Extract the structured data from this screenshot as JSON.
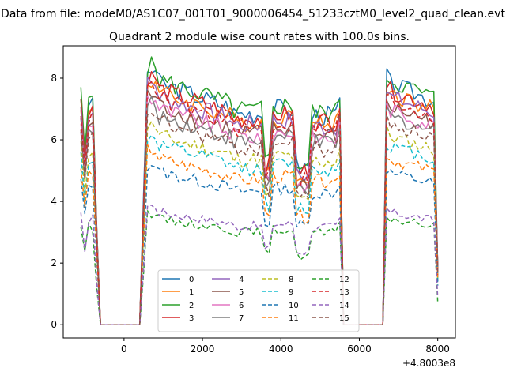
{
  "chart_data": {
    "type": "line",
    "suptitle": "Data from file: modeM0/AS1C07_001T01_9000006454_51233cztM0_level2_quad_clean.evt",
    "title": "Quadrant 2 module wise count rates with 100.0s bins.",
    "xlabel": "",
    "ylabel": "",
    "x_offset_label": "+4.8003e8",
    "xlim": [
      -1550,
      8450
    ],
    "ylim": [
      -0.43,
      9.05
    ],
    "x_ticks": [
      0,
      2000,
      4000,
      6000,
      8000
    ],
    "x_tick_labels": [
      "0",
      "2000",
      "4000",
      "6000",
      "8000"
    ],
    "y_ticks": [
      0,
      2,
      4,
      6,
      8
    ],
    "y_tick_labels": [
      "0",
      "2",
      "4",
      "6",
      "8"
    ],
    "grid": false,
    "legend": {
      "location": "bottom-center",
      "columns": 4
    },
    "segments_x": [
      [
        -1100,
        -1000,
        -900,
        -800,
        -700,
        -600
      ],
      [
        -600,
        400
      ],
      [
        400,
        500,
        600,
        700,
        800,
        900,
        1000,
        1100,
        1200,
        1300,
        1400,
        1500,
        1600,
        1700,
        1800,
        1900,
        2000,
        2100,
        2200,
        2300,
        2400,
        2500,
        2600,
        2700,
        2800,
        2900,
        3000,
        3100,
        3200,
        3300,
        3400,
        3500,
        3600,
        3700,
        3800,
        3900,
        4000,
        4100,
        4200,
        4300,
        4400,
        4500,
        4600,
        4700,
        4800,
        4900,
        5000,
        5100,
        5200,
        5300,
        5400,
        5500,
        5600
      ],
      [
        5600,
        6600
      ],
      [
        6600,
        6700,
        6800,
        6900,
        7000,
        7100,
        7200,
        7300,
        7400,
        7500,
        7600,
        7700,
        7800,
        7900,
        8000
      ]
    ],
    "series_levels": [
      7.3,
      7.0,
      7.4,
      7.1,
      6.9,
      6.6,
      6.5,
      6.3,
      5.7,
      5.4,
      4.6,
      5.0,
      3.2,
      6.8,
      3.4,
      6.1
    ],
    "series": [
      {
        "name": "0",
        "color": "#1f77b4",
        "dash": "solid",
        "level": 7.3
      },
      {
        "name": "1",
        "color": "#ff7f0e",
        "dash": "solid",
        "level": 7.0
      },
      {
        "name": "2",
        "color": "#2ca02c",
        "dash": "solid",
        "level": 7.4
      },
      {
        "name": "3",
        "color": "#d62728",
        "dash": "solid",
        "level": 7.1
      },
      {
        "name": "4",
        "color": "#9467bd",
        "dash": "solid",
        "level": 6.9
      },
      {
        "name": "5",
        "color": "#8c564b",
        "dash": "solid",
        "level": 6.6
      },
      {
        "name": "6",
        "color": "#e377c2",
        "dash": "solid",
        "level": 6.5
      },
      {
        "name": "7",
        "color": "#7f7f7f",
        "dash": "solid",
        "level": 6.3
      },
      {
        "name": "8",
        "color": "#bcbd22",
        "dash": "dashed",
        "level": 5.7
      },
      {
        "name": "9",
        "color": "#17becf",
        "dash": "dashed",
        "level": 5.4
      },
      {
        "name": "10",
        "color": "#1f77b4",
        "dash": "dashed",
        "level": 4.6
      },
      {
        "name": "11",
        "color": "#ff7f0e",
        "dash": "dashed",
        "level": 5.0
      },
      {
        "name": "12",
        "color": "#2ca02c",
        "dash": "dashed",
        "level": 3.2
      },
      {
        "name": "13",
        "color": "#d62728",
        "dash": "dashed",
        "level": 6.8
      },
      {
        "name": "14",
        "color": "#9467bd",
        "dash": "dashed",
        "level": 3.4
      },
      {
        "name": "15",
        "color": "#8c564b",
        "dash": "dashed",
        "level": 6.1
      }
    ]
  }
}
